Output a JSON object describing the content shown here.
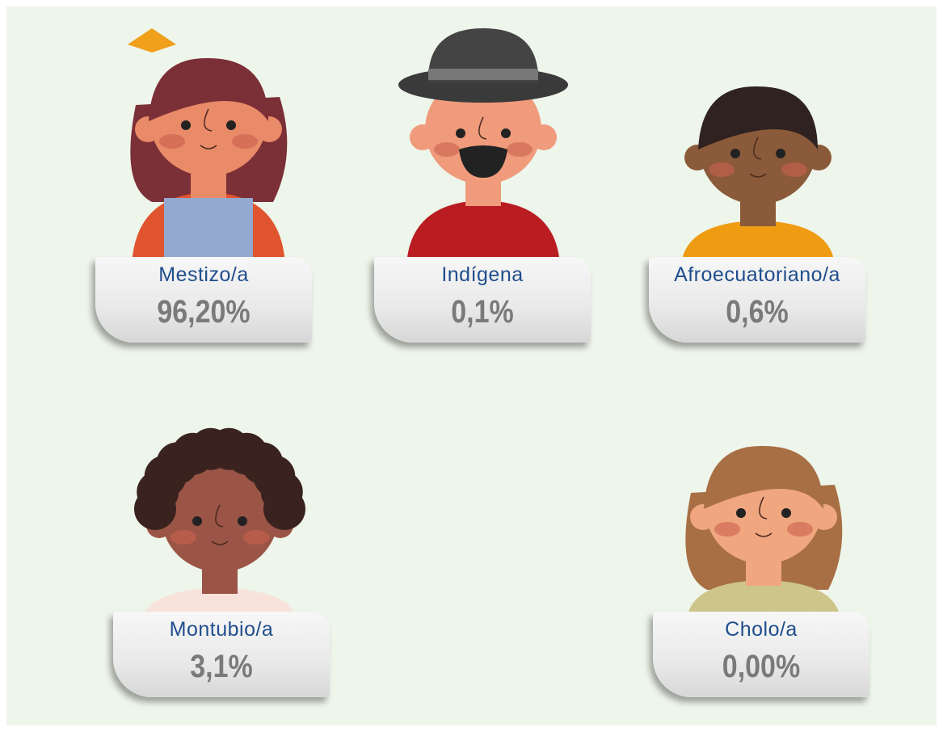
{
  "cards": [
    {
      "label": "Mestizo/a",
      "value": "96,20%"
    },
    {
      "label": "Indígena",
      "value": "0,1%"
    },
    {
      "label": "Afroecuatoriano/a",
      "value": "0,6%"
    },
    {
      "label": "Montubio/a",
      "value": "3,1%"
    },
    {
      "label": "Cholo/a",
      "value": "0,00%"
    }
  ]
}
